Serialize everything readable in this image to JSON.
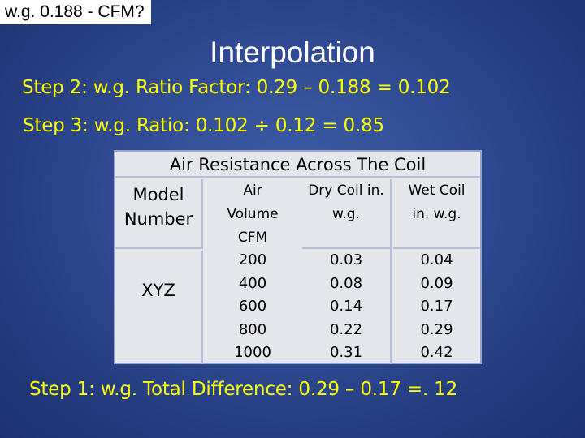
{
  "corner_title": "w.g. 0.188 - CFM?",
  "main_title": "Interpolation",
  "steps": {
    "step2": "Step 2: w.g. Ratio Factor: 0.29 – 0.188 = 0.102",
    "step3": "Step 3: w.g. Ratio: 0.102 ÷ 0.12 = 0.85",
    "step1": "Step 1: w.g. Total Difference: 0.29 – 0.17 =. 12"
  },
  "table": {
    "caption": "Air Resistance Across The Coil",
    "model_header": [
      "Model",
      "Number"
    ],
    "air_header": [
      "Air",
      "Volume",
      "CFM"
    ],
    "dry_header": [
      "Dry Coil in.",
      "w.g."
    ],
    "wet_header": [
      "Wet Coil",
      "in. w.g."
    ],
    "model": "XYZ",
    "air_volume": [
      "200",
      "400",
      "600",
      "800",
      "1000"
    ],
    "dry_coil": [
      "0.03",
      "0.08",
      "0.14",
      "0.22",
      "0.31"
    ],
    "wet_coil": [
      "0.04",
      "0.09",
      "0.17",
      "0.29",
      "0.42"
    ]
  },
  "colors": {
    "background": "#2f4a92",
    "step_text": "#ffff00",
    "title_text": "#ffffff",
    "table_bg": "#e4e6ec"
  }
}
